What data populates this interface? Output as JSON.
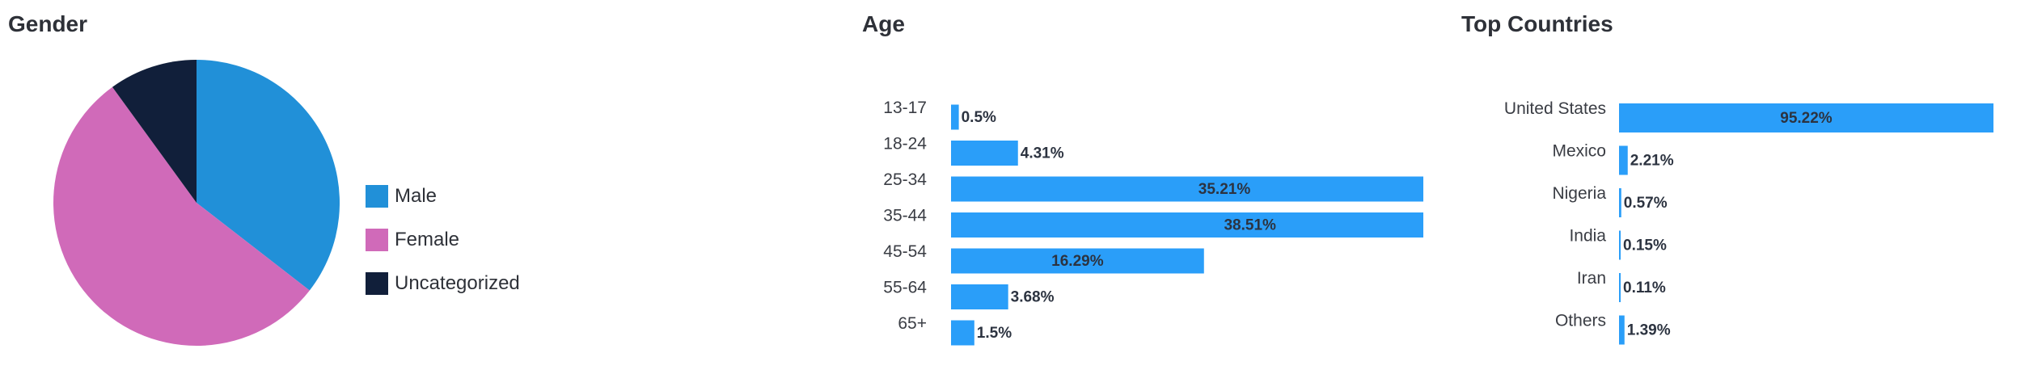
{
  "gender": {
    "title": "Gender",
    "chart_data": {
      "type": "pie",
      "labels": [
        "Male",
        "Female",
        "Uncategorized"
      ],
      "values": [
        35.5,
        54.5,
        10.0
      ],
      "colors": [
        "#2190d8",
        "#d06ab9",
        "#111f3a"
      ],
      "legend_position": "right"
    }
  },
  "age": {
    "title": "Age",
    "chart_data": {
      "type": "bar",
      "orientation": "horizontal",
      "categories": [
        "13-17",
        "18-24",
        "25-34",
        "35-44",
        "45-54",
        "55-64",
        "65+"
      ],
      "values": [
        0.5,
        4.31,
        35.21,
        38.51,
        16.29,
        3.68,
        1.5
      ],
      "value_labels": [
        "0.5%",
        "4.31%",
        "35.21%",
        "38.51%",
        "16.29%",
        "3.68%",
        "1.5%"
      ],
      "color": "#2a9ef9",
      "xlim": [
        0,
        50
      ]
    }
  },
  "countries": {
    "title": "Top Countries",
    "chart_data": {
      "type": "bar",
      "orientation": "horizontal",
      "categories": [
        "United States",
        "Mexico",
        "Nigeria",
        "India",
        "Iran",
        "Others"
      ],
      "values": [
        95.22,
        2.21,
        0.57,
        0.15,
        0.11,
        1.39
      ],
      "value_labels": [
        "95.22%",
        "2.21%",
        "0.57%",
        "0.15%",
        "0.11%",
        "1.39%"
      ],
      "color": "#2a9ef9",
      "xlim": [
        0,
        95.22
      ]
    }
  }
}
